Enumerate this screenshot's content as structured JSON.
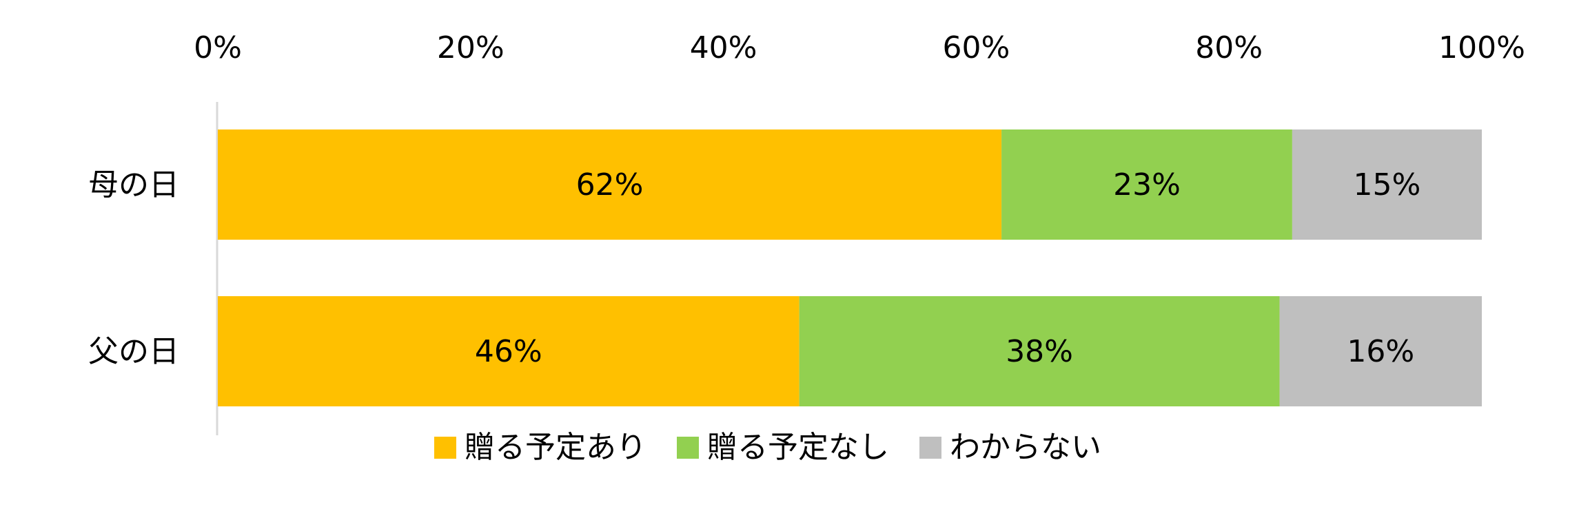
{
  "chart_data": {
    "type": "bar",
    "orientation": "horizontal",
    "stacked": true,
    "categories": [
      "母の日",
      "父の日"
    ],
    "series": [
      {
        "name": "贈る予定あり",
        "values": [
          62,
          46
        ],
        "labels": [
          "62%",
          "46%"
        ],
        "color": "#FFC000"
      },
      {
        "name": "贈る予定なし",
        "values": [
          23,
          38
        ],
        "labels": [
          "23%",
          "38%"
        ],
        "color": "#92D050"
      },
      {
        "name": "わからない",
        "values": [
          15,
          16
        ],
        "labels": [
          "15%",
          "16%"
        ],
        "color": "#BFBFBF"
      }
    ],
    "xlim": [
      0,
      100
    ],
    "x_ticks": [
      "0%",
      "20%",
      "40%",
      "60%",
      "80%",
      "100%"
    ],
    "grid": false,
    "legend_position": "bottom",
    "title": "",
    "xlabel": "",
    "ylabel": ""
  }
}
